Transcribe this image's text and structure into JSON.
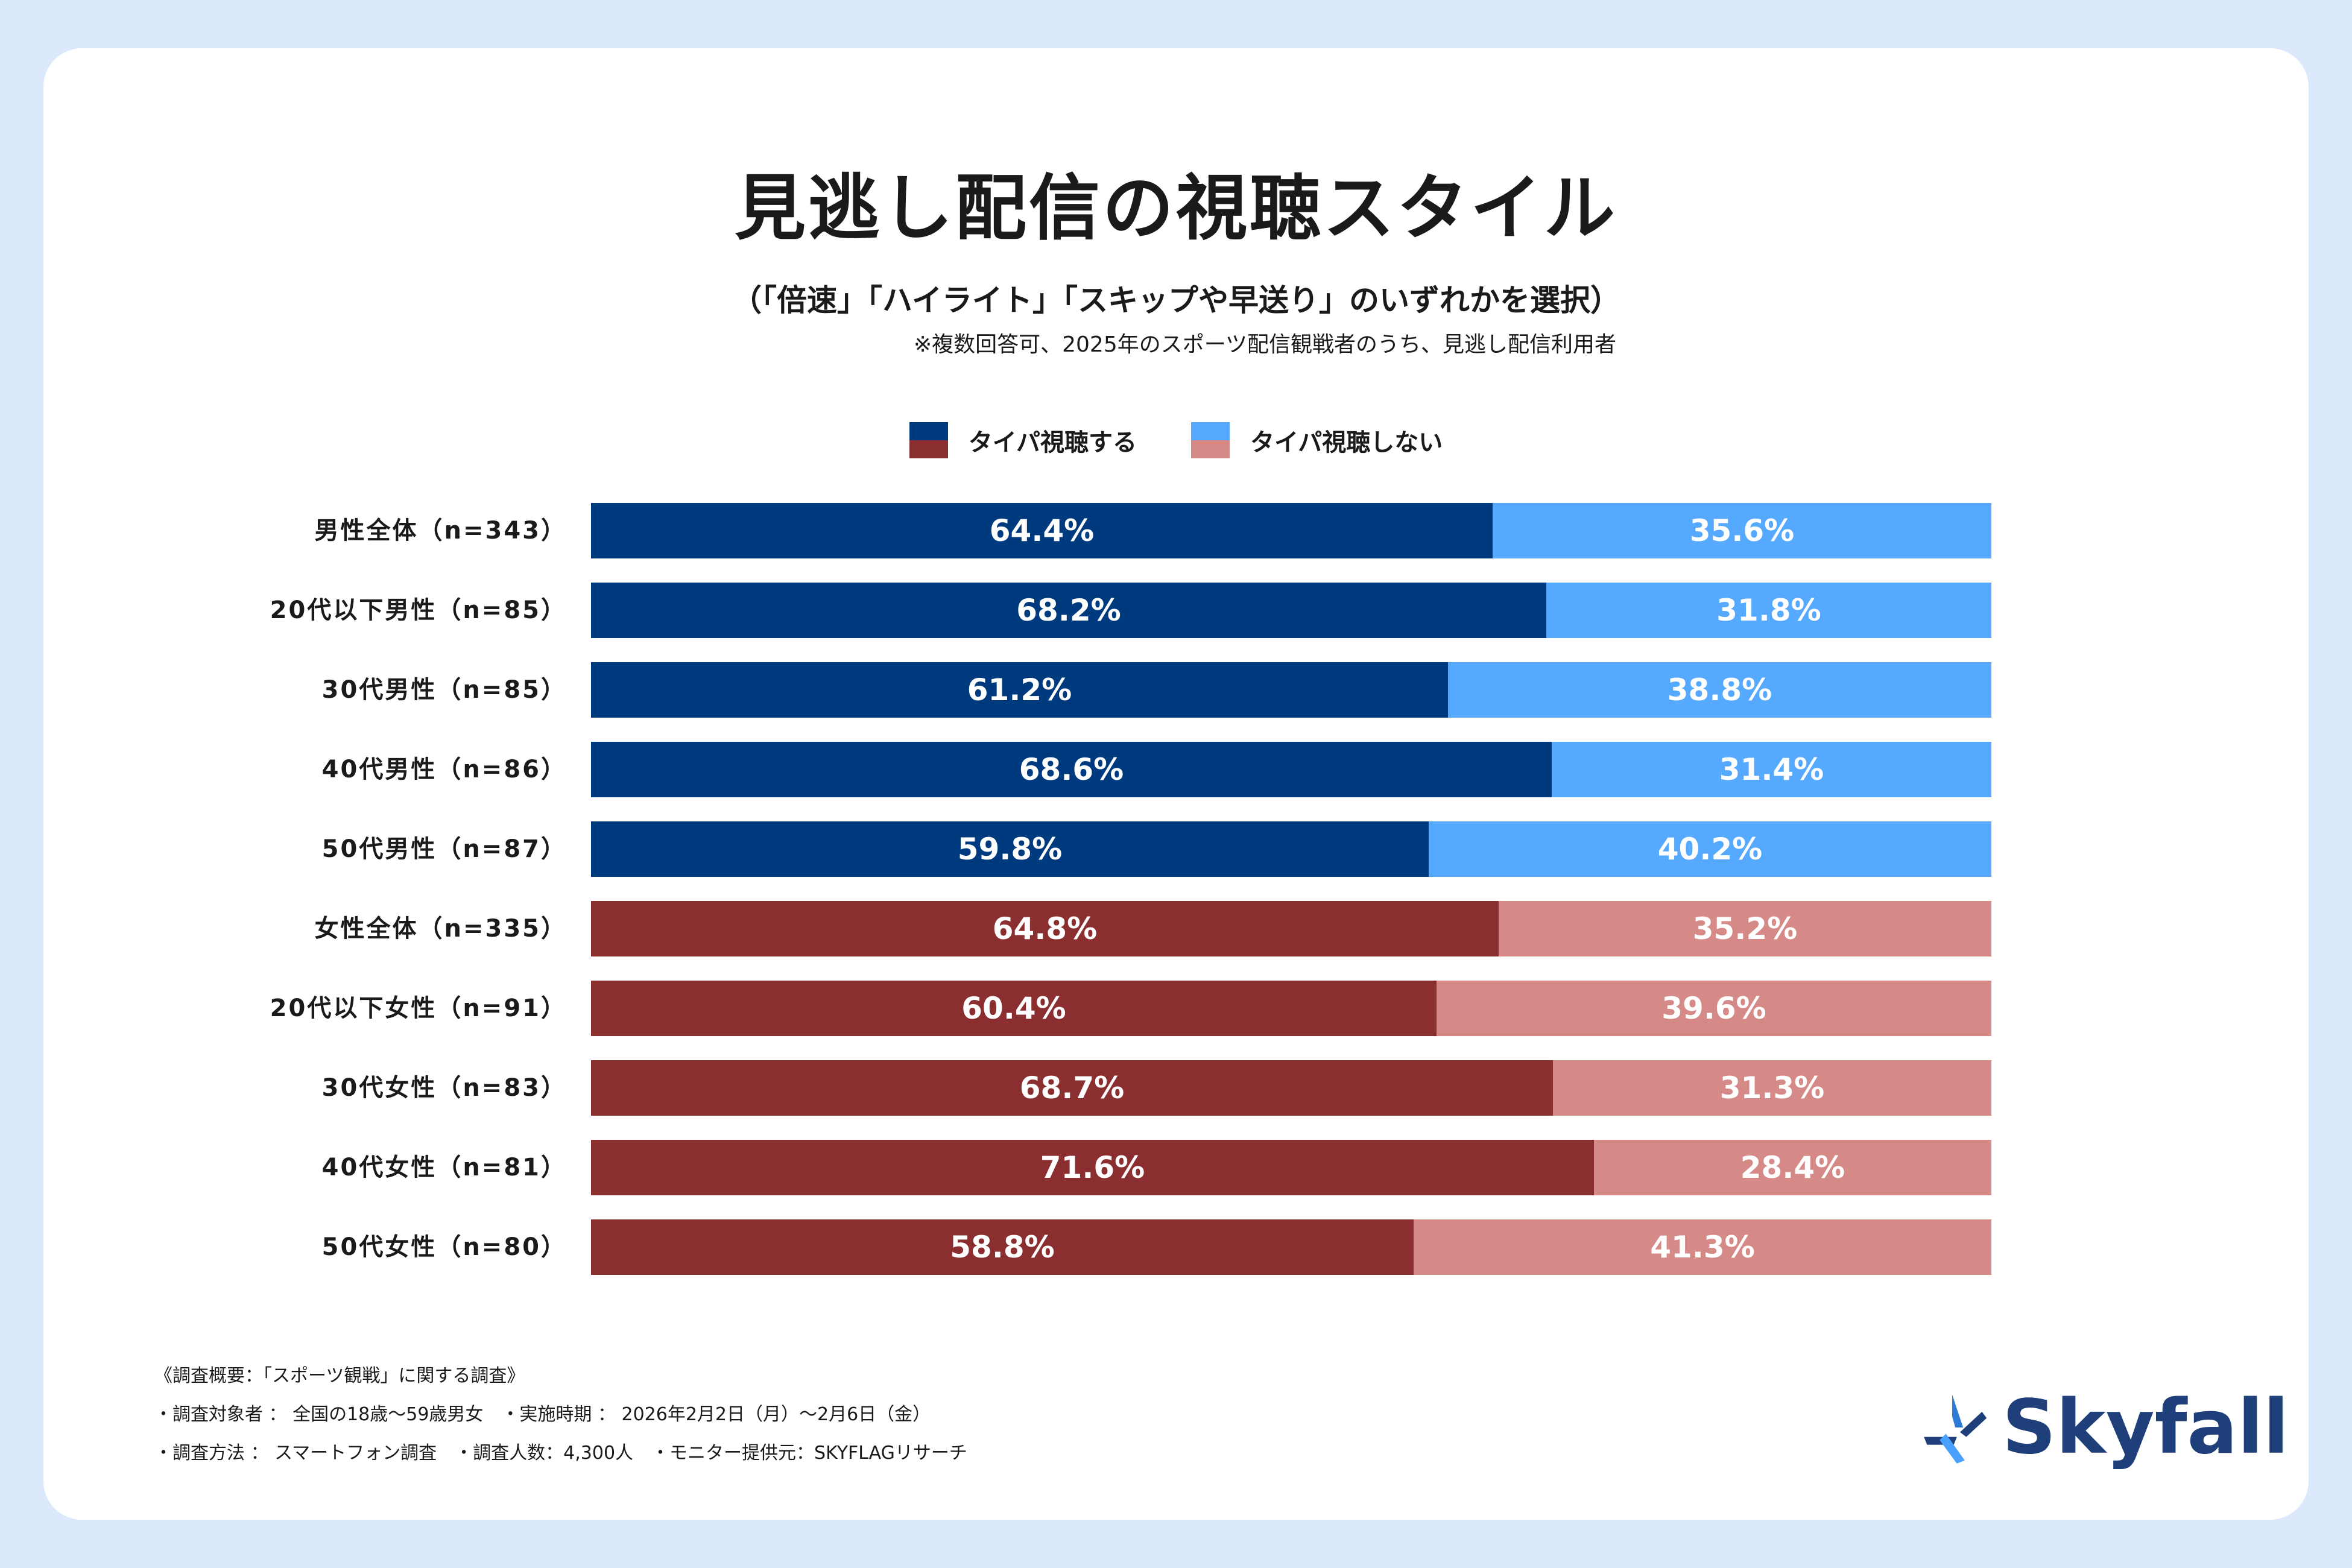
{
  "title": "見逃し配信の視聴スタイル",
  "subtitle": "（「倍速」「ハイライト」「スキップや早送り」のいずれかを選択）",
  "note": "※複数回答可、2025年のスポーツ配信観戦者のうち、見逃し配信利用者",
  "colors": {
    "male_dark": "#003a7e",
    "male_light": "#55aaff",
    "female_dark": "#8a2e30",
    "female_light": "#d58a88"
  },
  "chart_data": {
    "type": "bar",
    "orientation": "horizontal",
    "stacked": true,
    "title": "見逃し配信の視聴スタイル",
    "legend": [
      "タイパ視聴する",
      "タイパ視聴しない"
    ],
    "legend_position": "top-center",
    "categories": [
      "男性全体（n=343）",
      "20代以下男性（n=85）",
      "30代男性（n=85）",
      "40代男性（n=86）",
      "50代男性（n=87）",
      "女性全体（n=335）",
      "20代以下女性（n=91）",
      "30代女性（n=83）",
      "40代女性（n=81）",
      "50代女性（n=80）"
    ],
    "groups": [
      "male",
      "male",
      "male",
      "male",
      "male",
      "female",
      "female",
      "female",
      "female",
      "female"
    ],
    "series": [
      {
        "name": "タイパ視聴する",
        "values": [
          64.4,
          68.2,
          61.2,
          68.6,
          59.8,
          64.8,
          60.4,
          68.7,
          71.6,
          58.8
        ]
      },
      {
        "name": "タイパ視聴しない",
        "values": [
          35.6,
          31.8,
          38.8,
          31.4,
          40.2,
          35.2,
          39.6,
          31.3,
          28.4,
          41.3
        ]
      }
    ],
    "unit": "%",
    "xlim": [
      0,
      100
    ]
  },
  "footer": {
    "line1": "《調査概要：「スポーツ観戦」に関する調査》",
    "line2": "・調査対象者 ： 全国の18歳〜59歳男女　・実施時期 ： 2026年2月2日（月）〜2月6日（金）",
    "line3": "・調査方法 ： スマートフォン調査　・調査人数：4,300人　・モニター提供元：SKYFLAGリサーチ"
  },
  "logo": {
    "text": "Skyfall"
  }
}
